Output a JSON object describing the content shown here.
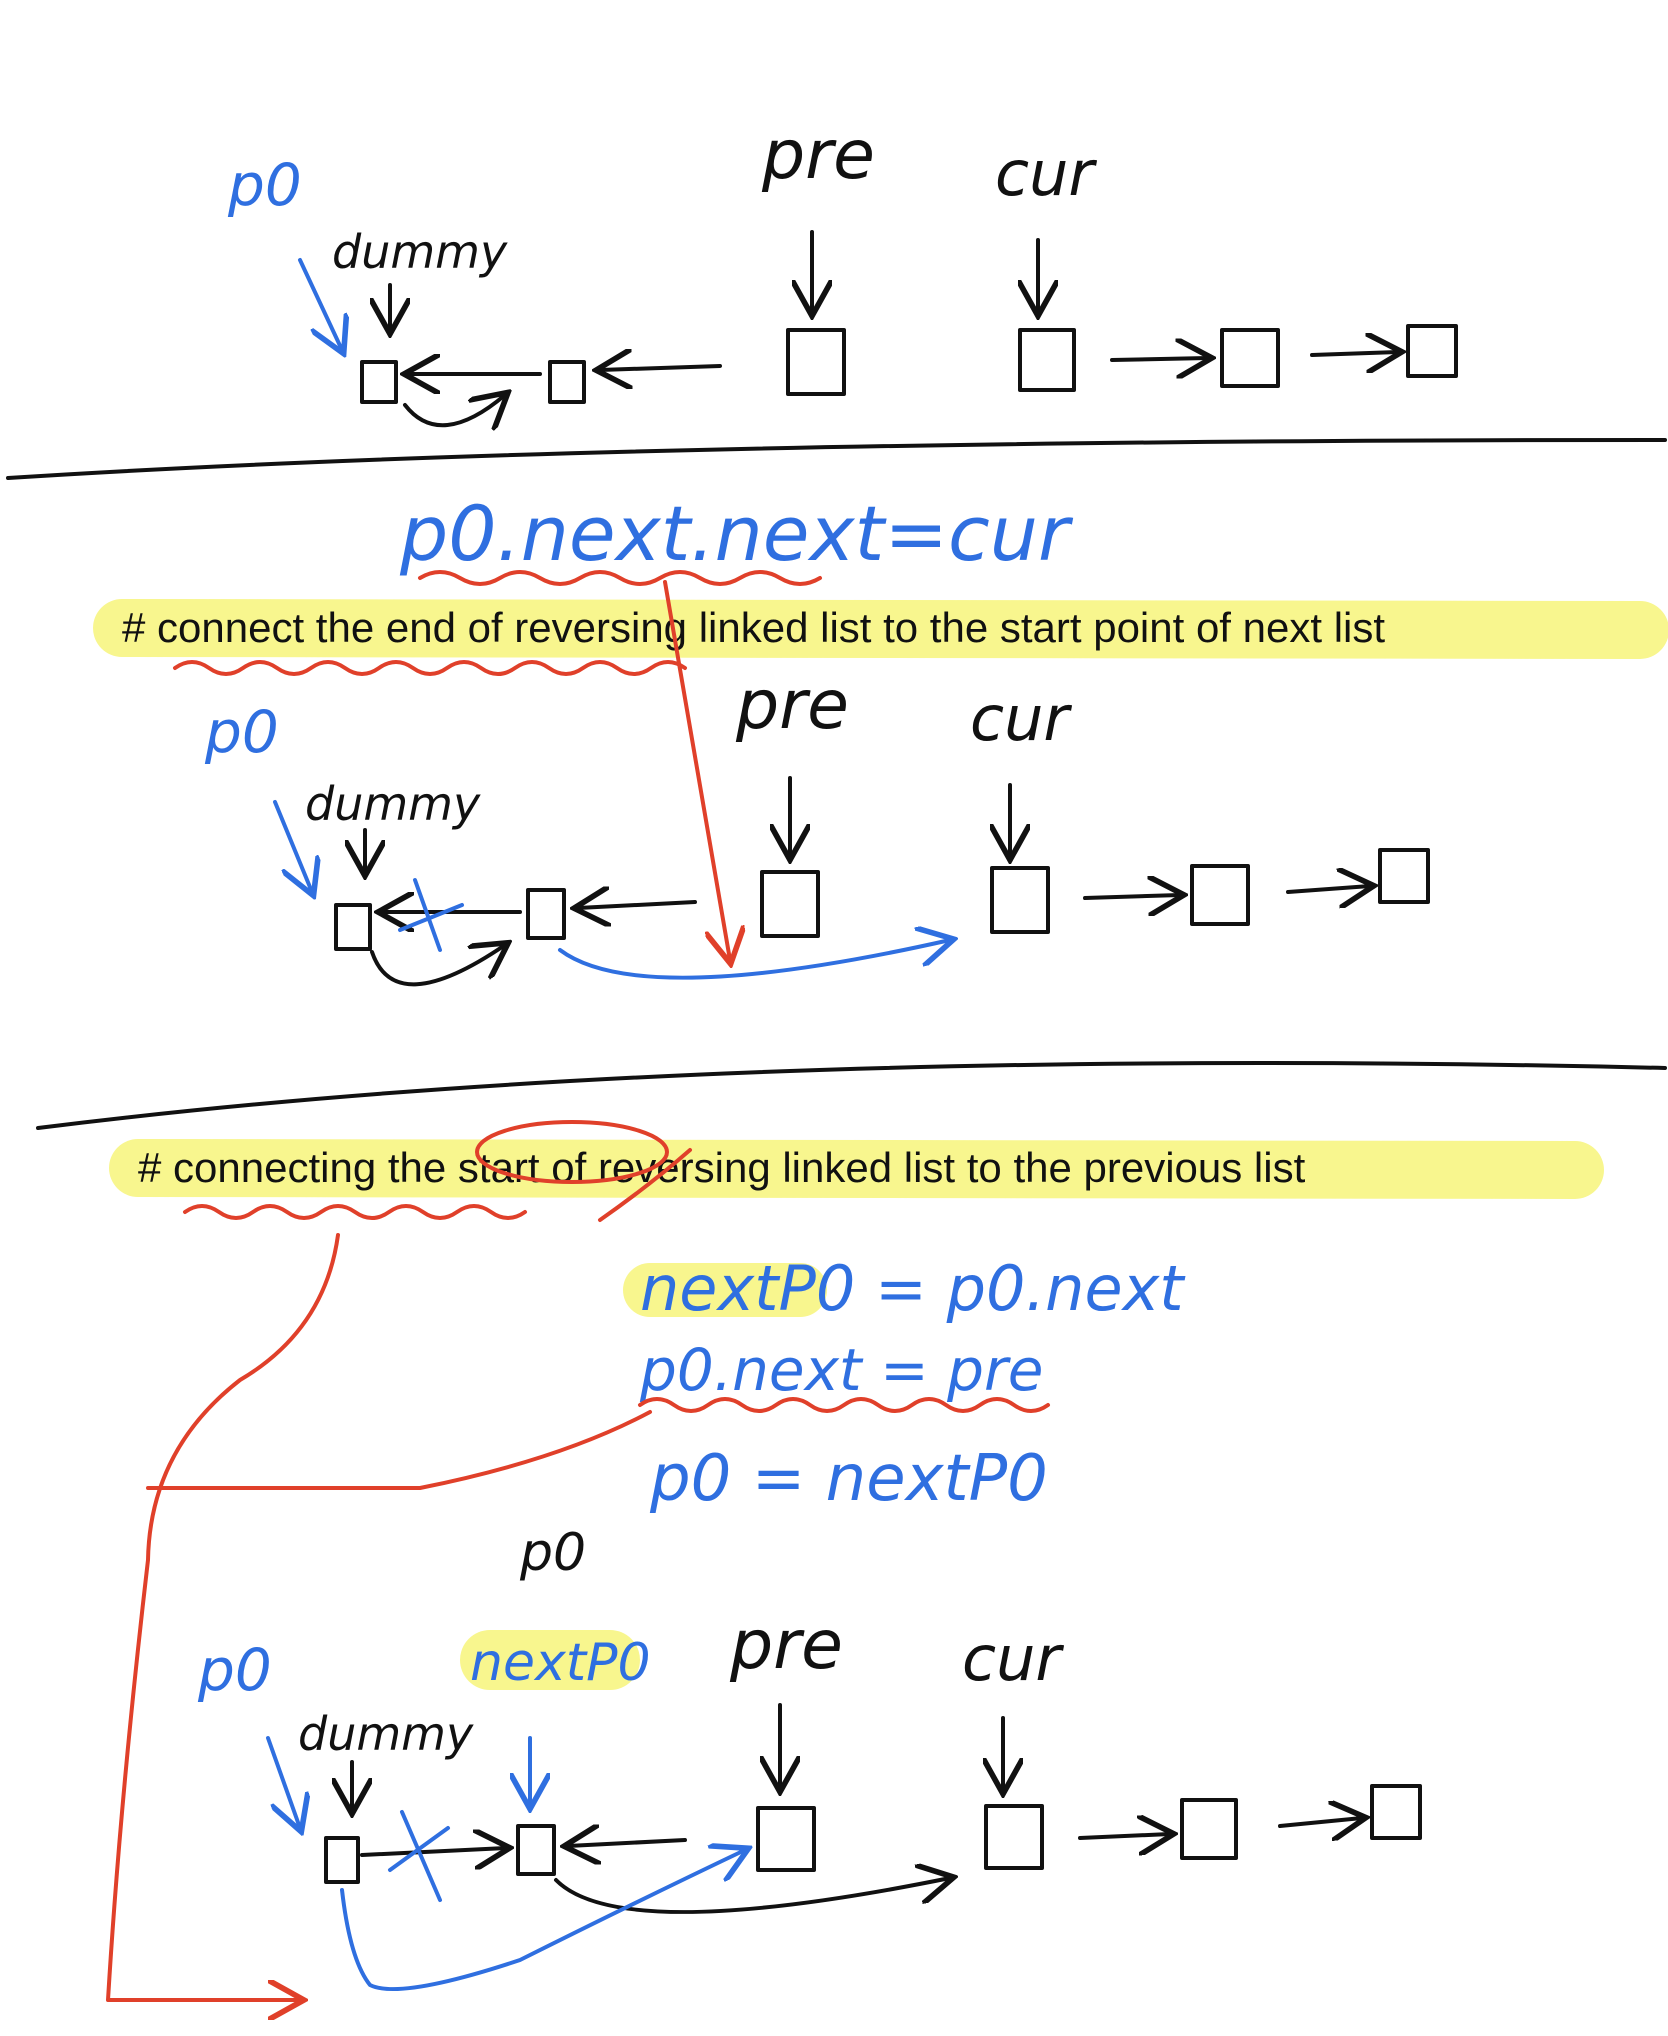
{
  "labels": {
    "p0": "p0",
    "dummy": "dummy",
    "pre": "pre",
    "cur": "cur",
    "next_p0": "nextP0"
  },
  "code": {
    "line1": "p0.next.next=cur",
    "line2": "nextP0 = p0.next",
    "line3": "p0.next = pre",
    "line4": "p0 = nextP0"
  },
  "comments": {
    "connect_end": "# connect the end of reversing linked list to the start point of next list",
    "connect_start": "# connecting the start of reversing linked list to the previous list"
  },
  "colors": {
    "black": "#111111",
    "blue": "#2f6fe0",
    "red": "#e0402a",
    "highlight": "#f7f47a"
  }
}
